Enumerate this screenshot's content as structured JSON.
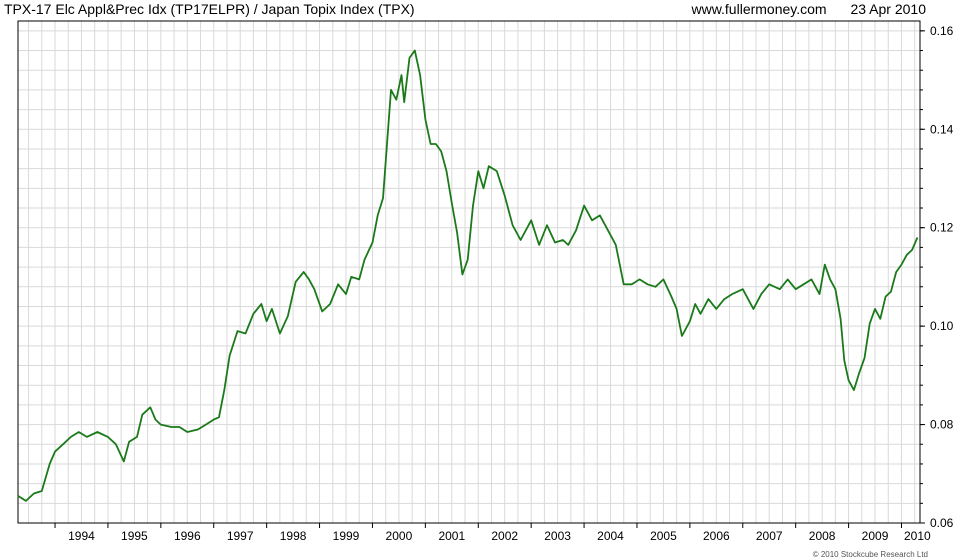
{
  "header": {
    "title": "TPX-17 Elc Appl&Prec Idx (TP17ELPR) / Japan Topix Index (TPX)",
    "source": "www.fullermoney.com",
    "date": "23 Apr 2010"
  },
  "footer": {
    "copyright": "© 2010 Stockcube Research Ltd"
  },
  "colors": {
    "line": "#1a7a1a",
    "grid": "#d9d9d9",
    "frame": "#000000"
  },
  "chart_data": {
    "type": "line",
    "title": "TPX-17 Elc Appl&Prec Idx (TP17ELPR) / Japan Topix Index (TPX)",
    "xlabel": "",
    "ylabel": "",
    "x_range": [
      1993.3,
      2010.35
    ],
    "ylim": [
      0.06,
      0.162
    ],
    "y_ticks": [
      "0.06",
      "0.08",
      "0.10",
      "0.12",
      "0.14",
      "0.16"
    ],
    "x_ticks": [
      "1994",
      "1995",
      "1996",
      "1997",
      "1998",
      "1999",
      "2000",
      "2001",
      "2002",
      "2003",
      "2004",
      "2005",
      "2006",
      "2007",
      "2008",
      "2009",
      "2010"
    ],
    "y_axis_side": "right",
    "grid": true,
    "series": [
      {
        "x": [
          1993.3,
          1993.45,
          1993.6,
          1993.75,
          1993.9,
          1994.0,
          1994.15,
          1994.3,
          1994.45,
          1994.6,
          1994.8,
          1995.0,
          1995.15,
          1995.3,
          1995.4,
          1995.55,
          1995.65,
          1995.8,
          1995.9,
          1996.0,
          1996.2,
          1996.35,
          1996.5,
          1996.7,
          1996.85,
          1997.0,
          1997.1,
          1997.2,
          1997.3,
          1997.45,
          1997.6,
          1997.75,
          1997.9,
          1998.0,
          1998.1,
          1998.25,
          1998.4,
          1998.55,
          1998.7,
          1998.8,
          1998.9,
          1999.05,
          1999.2,
          1999.35,
          1999.5,
          1999.6,
          1999.75,
          1999.85,
          2000.0,
          2000.1,
          2000.2,
          2000.35,
          2000.45,
          2000.55,
          2000.6,
          2000.7,
          2000.8,
          2000.9,
          2001.0,
          2001.1,
          2001.2,
          2001.3,
          2001.4,
          2001.5,
          2001.6,
          2001.7,
          2001.8,
          2001.9,
          2002.0,
          2002.1,
          2002.2,
          2002.35,
          2002.5,
          2002.65,
          2002.8,
          2003.0,
          2003.15,
          2003.3,
          2003.45,
          2003.6,
          2003.7,
          2003.85,
          2004.0,
          2004.15,
          2004.3,
          2004.45,
          2004.6,
          2004.75,
          2004.9,
          2005.05,
          2005.2,
          2005.35,
          2005.5,
          2005.65,
          2005.75,
          2005.85,
          2006.0,
          2006.1,
          2006.2,
          2006.35,
          2006.5,
          2006.65,
          2006.8,
          2007.0,
          2007.2,
          2007.35,
          2007.5,
          2007.7,
          2007.85,
          2008.0,
          2008.15,
          2008.3,
          2008.45,
          2008.55,
          2008.65,
          2008.75,
          2008.85,
          2008.92,
          2009.0,
          2009.1,
          2009.2,
          2009.3,
          2009.4,
          2009.5,
          2009.6,
          2009.7,
          2009.8,
          2009.9,
          2010.0,
          2010.1,
          2010.2,
          2010.3
        ],
        "y": [
          0.0655,
          0.0645,
          0.066,
          0.0665,
          0.072,
          0.0745,
          0.076,
          0.0775,
          0.0785,
          0.0775,
          0.0785,
          0.0775,
          0.076,
          0.0725,
          0.0765,
          0.0775,
          0.082,
          0.0835,
          0.081,
          0.08,
          0.0795,
          0.0795,
          0.0785,
          0.079,
          0.08,
          0.081,
          0.0815,
          0.087,
          0.094,
          0.099,
          0.0985,
          0.1025,
          0.1045,
          0.101,
          0.1035,
          0.0985,
          0.102,
          0.109,
          0.111,
          0.1095,
          0.1075,
          0.103,
          0.1045,
          0.1085,
          0.1065,
          0.11,
          0.1095,
          0.1135,
          0.117,
          0.1225,
          0.126,
          0.148,
          0.146,
          0.151,
          0.1455,
          0.1545,
          0.156,
          0.151,
          0.142,
          0.137,
          0.137,
          0.1355,
          0.1315,
          0.125,
          0.119,
          0.1105,
          0.1135,
          0.1245,
          0.1315,
          0.128,
          0.1325,
          0.1315,
          0.1265,
          0.1205,
          0.1175,
          0.1215,
          0.1165,
          0.1205,
          0.117,
          0.1175,
          0.1165,
          0.1195,
          0.1245,
          0.1215,
          0.1225,
          0.1195,
          0.1165,
          0.1085,
          0.1085,
          0.1095,
          0.1085,
          0.108,
          0.1095,
          0.106,
          0.1035,
          0.098,
          0.101,
          0.1045,
          0.1025,
          0.1055,
          0.1035,
          0.1055,
          0.1065,
          0.1075,
          0.1035,
          0.1065,
          0.1085,
          0.1075,
          0.1095,
          0.1075,
          0.1085,
          0.1095,
          0.1065,
          0.1125,
          0.1095,
          0.1075,
          0.1015,
          0.093,
          0.089,
          0.087,
          0.0905,
          0.0935,
          0.1005,
          0.1035,
          0.1015,
          0.106,
          0.107,
          0.111,
          0.1125,
          0.1145,
          0.1155,
          0.118
        ]
      }
    ]
  }
}
